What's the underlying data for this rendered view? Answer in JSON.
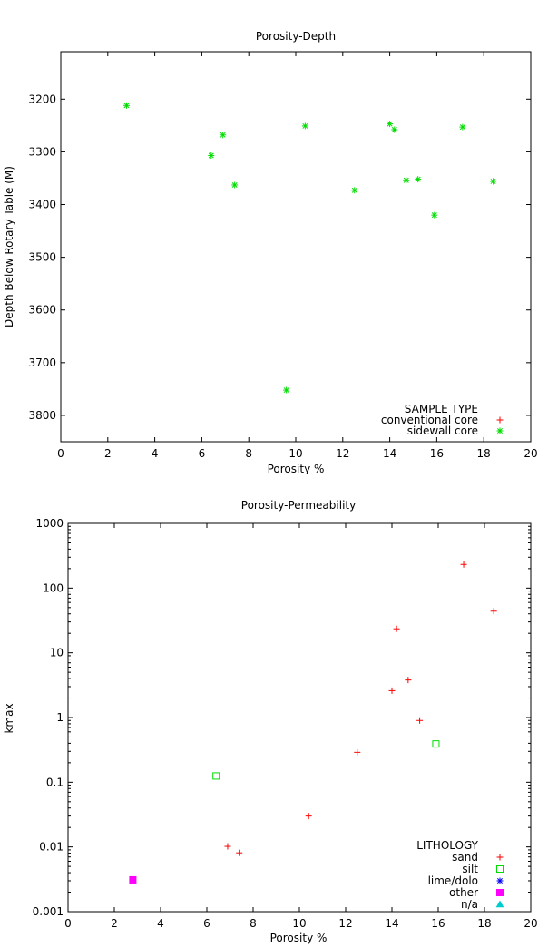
{
  "chart_data": [
    {
      "type": "scatter",
      "title": "Porosity-Depth",
      "xlabel": "Porosity %",
      "ylabel": "Depth Below Rotary Table (M)",
      "xlim": [
        0,
        20
      ],
      "ylim": [
        3850,
        3110
      ],
      "y_inverted": true,
      "grid": false,
      "x_ticks": [
        0,
        2,
        4,
        6,
        8,
        10,
        12,
        14,
        16,
        18,
        20
      ],
      "y_ticks": [
        3200,
        3300,
        3400,
        3500,
        3600,
        3700,
        3800
      ],
      "legend": {
        "title": "SAMPLE TYPE",
        "placement": "bottom-right",
        "entries": [
          {
            "name": "conventional core",
            "marker": "plus",
            "color": "#ff0000"
          },
          {
            "name": "sidewall core",
            "marker": "star",
            "color": "#00dd00"
          }
        ]
      },
      "series": [
        {
          "name": "conventional core",
          "marker": "plus",
          "color": "#ff0000",
          "points": []
        },
        {
          "name": "sidewall core",
          "marker": "star",
          "color": "#00dd00",
          "points": [
            {
              "x": 2.8,
              "y": 3212
            },
            {
              "x": 6.4,
              "y": 3307
            },
            {
              "x": 6.9,
              "y": 3268
            },
            {
              "x": 7.4,
              "y": 3363
            },
            {
              "x": 9.6,
              "y": 3752
            },
            {
              "x": 10.4,
              "y": 3251
            },
            {
              "x": 12.5,
              "y": 3373
            },
            {
              "x": 14.0,
              "y": 3247
            },
            {
              "x": 14.2,
              "y": 3258
            },
            {
              "x": 14.7,
              "y": 3354
            },
            {
              "x": 15.2,
              "y": 3352
            },
            {
              "x": 15.9,
              "y": 3420
            },
            {
              "x": 17.1,
              "y": 3253
            },
            {
              "x": 18.4,
              "y": 3356
            }
          ]
        }
      ]
    },
    {
      "type": "scatter",
      "title": "Porosity-Permeability",
      "xlabel": "Porosity %",
      "ylabel": "kmax",
      "xlim": [
        0,
        20
      ],
      "ylim": [
        0.001,
        1000
      ],
      "y_scale": "log",
      "grid": false,
      "x_ticks": [
        0,
        2,
        4,
        6,
        8,
        10,
        12,
        14,
        16,
        18,
        20
      ],
      "y_ticks": [
        0.001,
        0.01,
        0.1,
        1,
        10,
        100,
        1000
      ],
      "y_tick_labels": [
        "0.001",
        "0.01",
        "0.1",
        "1",
        "10",
        "100",
        "1000"
      ],
      "legend": {
        "title": "LITHOLOGY",
        "placement": "bottom-right",
        "entries": [
          {
            "name": "sand",
            "marker": "plus",
            "color": "#ff0000"
          },
          {
            "name": "silt",
            "marker": "open-square",
            "color": "#00dd00"
          },
          {
            "name": "lime/dolo",
            "marker": "star",
            "color": "#0000ff"
          },
          {
            "name": "other",
            "marker": "filled-square",
            "color": "#ff00ff"
          },
          {
            "name": "n/a",
            "marker": "filled-triangle",
            "color": "#00cccc"
          }
        ]
      },
      "series": [
        {
          "name": "sand",
          "marker": "plus",
          "color": "#ff0000",
          "points": [
            {
              "x": 6.9,
              "y": 0.0102
            },
            {
              "x": 7.4,
              "y": 0.0081
            },
            {
              "x": 10.4,
              "y": 0.03
            },
            {
              "x": 12.5,
              "y": 0.29
            },
            {
              "x": 14.0,
              "y": 2.6
            },
            {
              "x": 14.2,
              "y": 23.5
            },
            {
              "x": 14.7,
              "y": 3.8
            },
            {
              "x": 15.2,
              "y": 0.9
            },
            {
              "x": 17.1,
              "y": 232
            },
            {
              "x": 18.4,
              "y": 44
            }
          ]
        },
        {
          "name": "silt",
          "marker": "open-square",
          "color": "#00dd00",
          "points": [
            {
              "x": 6.4,
              "y": 0.125
            },
            {
              "x": 15.9,
              "y": 0.39
            }
          ]
        },
        {
          "name": "lime/dolo",
          "marker": "star",
          "color": "#0000ff",
          "points": []
        },
        {
          "name": "other",
          "marker": "filled-square",
          "color": "#ff00ff",
          "points": [
            {
              "x": 2.8,
              "y": 0.0031
            }
          ]
        },
        {
          "name": "n/a",
          "marker": "filled-triangle",
          "color": "#00cccc",
          "points": []
        }
      ]
    }
  ]
}
